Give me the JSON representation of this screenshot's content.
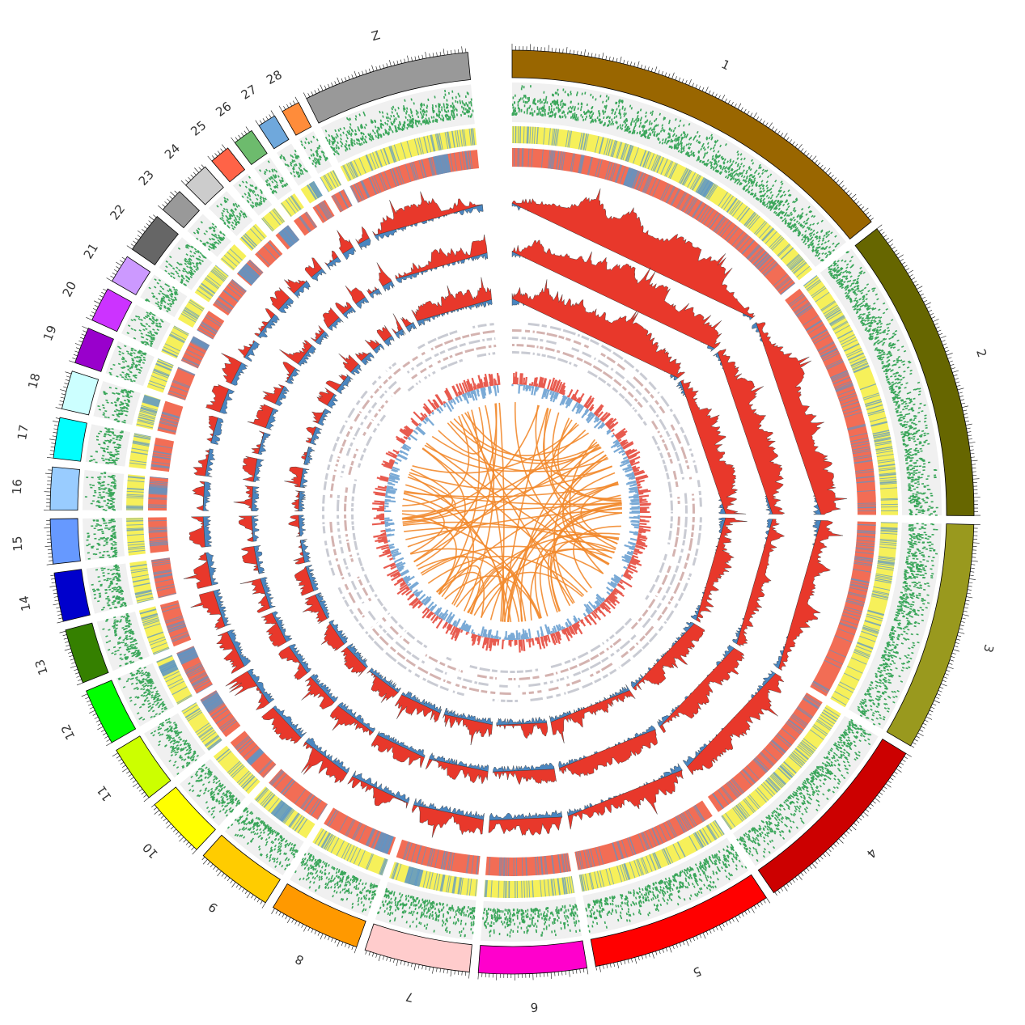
{
  "chromosomes": [
    {
      "label": "1",
      "length": 200,
      "color": "#996600"
    },
    {
      "label": "2",
      "length": 150,
      "color": "#666600"
    },
    {
      "label": "3",
      "length": 113,
      "color": "#99991e"
    },
    {
      "label": "4",
      "length": 94,
      "color": "#cc0000"
    },
    {
      "label": "5",
      "length": 90,
      "color": "#ff0000"
    },
    {
      "label": "6",
      "length": 53,
      "color": "#ff00cc"
    },
    {
      "label": "7",
      "length": 52,
      "color": "#ffcccc"
    },
    {
      "label": "8",
      "length": 45,
      "color": "#ff9900"
    },
    {
      "label": "9",
      "length": 38,
      "color": "#ffcc00"
    },
    {
      "label": "10",
      "length": 30,
      "color": "#ffff00"
    },
    {
      "label": "11",
      "length": 28,
      "color": "#ccff00"
    },
    {
      "label": "12",
      "length": 28,
      "color": "#00ff00"
    },
    {
      "label": "13",
      "length": 27,
      "color": "#358000"
    },
    {
      "label": "14",
      "length": 24,
      "color": "#0000cc"
    },
    {
      "label": "15",
      "length": 22,
      "color": "#6699ff"
    },
    {
      "label": "16",
      "length": 21,
      "color": "#99ccff"
    },
    {
      "label": "17",
      "length": 20,
      "color": "#00ffff"
    },
    {
      "label": "18",
      "length": 19,
      "color": "#ccffff"
    },
    {
      "label": "19",
      "length": 18,
      "color": "#9900cc"
    },
    {
      "label": "20",
      "length": 17,
      "color": "#cc33ff"
    },
    {
      "label": "21",
      "length": 14,
      "color": "#cc99ff"
    },
    {
      "label": "22",
      "length": 20,
      "color": "#666666"
    },
    {
      "label": "23",
      "length": 12,
      "color": "#999999"
    },
    {
      "label": "24",
      "length": 13,
      "color": "#cccccc"
    },
    {
      "label": "25",
      "length": 10,
      "color": "#ff6347"
    },
    {
      "label": "26",
      "length": 10,
      "color": "#6dbb6d"
    },
    {
      "label": "27",
      "length": 9,
      "color": "#6fa8dc"
    },
    {
      "label": "28",
      "length": 9,
      "color": "#ff8c3a"
    },
    {
      "label": "Z",
      "length": 82,
      "color": "#999999"
    }
  ],
  "colors": {
    "ideogram_stroke": "#000000",
    "track_background": "#f0f0f0",
    "scatter_points": "#3aa65a",
    "heatmap_yellow": "#f6f05a",
    "heatmap_salmon": "#f26d55",
    "heatmap_blue": "#5b95c8",
    "area_red": "#e8382b",
    "area_blue": "#4a86c0",
    "area_outline": "#333333",
    "histogram_red": "#e85b4f",
    "histogram_blue": "#7aaad6",
    "tile_gray": "#c9cbd3",
    "tile_pink": "#d4b3b0",
    "links": "#f28a2e"
  },
  "links_count": 80
}
